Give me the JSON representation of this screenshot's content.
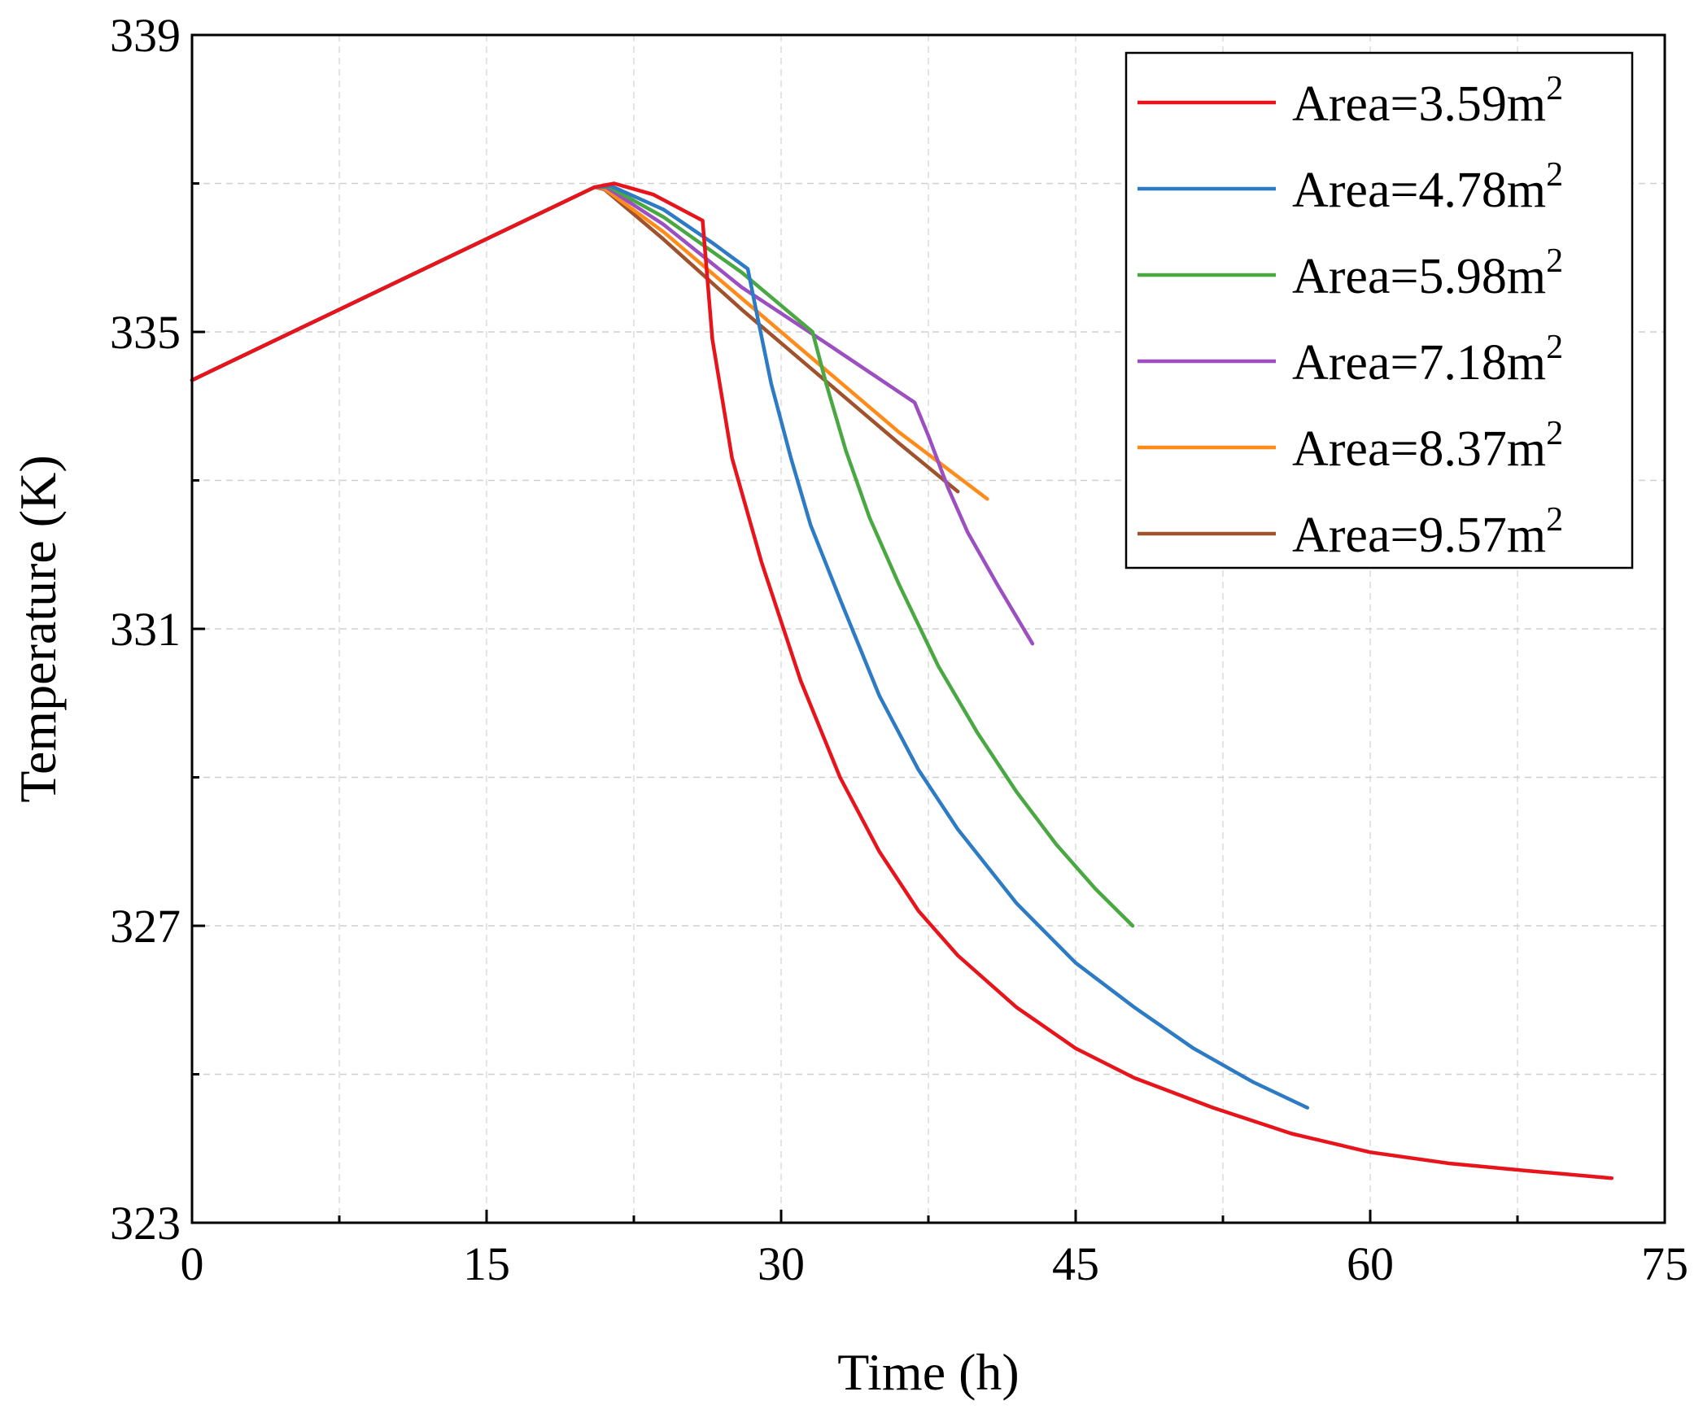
{
  "chart_data": {
    "type": "line",
    "title": "",
    "xlabel": "Time (h)",
    "ylabel": "Temperature (K)",
    "xlim": [
      0,
      75
    ],
    "ylim": [
      323,
      339
    ],
    "xticks": [
      0,
      15,
      30,
      45,
      60,
      75
    ],
    "yticks": [
      323,
      327,
      331,
      335,
      339
    ],
    "grid": true,
    "legend_position": "top-right",
    "series": [
      {
        "name": "Area=3.59m",
        "name_sup": "2",
        "color": "#e8141c",
        "x": [
          0,
          20.5,
          21.5,
          23.5,
          26.0,
          26.5,
          27.5,
          29,
          30,
          31,
          33,
          35,
          37,
          39,
          42,
          45,
          48,
          52,
          56,
          60,
          64,
          68,
          72.3
        ],
        "y": [
          334.35,
          336.95,
          337.0,
          336.85,
          336.5,
          334.9,
          333.3,
          331.9,
          331.1,
          330.3,
          329.0,
          328.0,
          327.2,
          326.6,
          325.9,
          325.35,
          324.95,
          324.55,
          324.2,
          323.95,
          323.8,
          323.7,
          323.6
        ]
      },
      {
        "name": "Area=4.78m",
        "name_sup": "2",
        "color": "#2c7bc4",
        "x": [
          0,
          20.5,
          21.3,
          24,
          26.5,
          28.3,
          28.8,
          29.5,
          30.5,
          31.5,
          33,
          35,
          37,
          39,
          42,
          45,
          48,
          51,
          54,
          56.8
        ],
        "y": [
          334.35,
          336.95,
          336.97,
          336.65,
          336.2,
          335.85,
          335.2,
          334.3,
          333.3,
          332.4,
          331.4,
          330.1,
          329.1,
          328.3,
          327.3,
          326.5,
          325.9,
          325.35,
          324.9,
          324.55
        ]
      },
      {
        "name": "Area=5.98m",
        "name_sup": "2",
        "color": "#4aa842",
        "x": [
          0,
          20.5,
          21.2,
          24,
          28,
          31.6,
          32.3,
          33.3,
          34.5,
          36,
          38,
          40,
          42,
          44,
          46,
          47.9
        ],
        "y": [
          334.35,
          336.95,
          336.96,
          336.55,
          335.8,
          335.0,
          334.3,
          333.4,
          332.5,
          331.6,
          330.5,
          329.6,
          328.8,
          328.1,
          327.5,
          327.0
        ]
      },
      {
        "name": "Area=7.18m",
        "name_sup": "2",
        "color": "#9b4fc0",
        "x": [
          0,
          20.5,
          21.1,
          24,
          28,
          32,
          36.8,
          37.5,
          38.5,
          39.5,
          41,
          42.8
        ],
        "y": [
          334.35,
          336.95,
          336.95,
          336.45,
          335.6,
          334.9,
          334.05,
          333.6,
          332.9,
          332.3,
          331.6,
          330.8
        ]
      },
      {
        "name": "Area=8.37m",
        "name_sup": "2",
        "color": "#ff8c1a",
        "x": [
          0,
          20.5,
          21.0,
          24,
          28,
          32,
          36,
          40.5
        ],
        "y": [
          334.35,
          336.95,
          336.93,
          336.35,
          335.45,
          334.55,
          333.65,
          332.75
        ]
      },
      {
        "name": "Area=9.57m",
        "name_sup": "2",
        "color": "#a0522d",
        "x": [
          0,
          20.5,
          21.0,
          24,
          28,
          32,
          36,
          39
        ],
        "y": [
          334.35,
          336.95,
          336.92,
          336.25,
          335.3,
          334.4,
          333.5,
          332.85
        ]
      }
    ]
  }
}
